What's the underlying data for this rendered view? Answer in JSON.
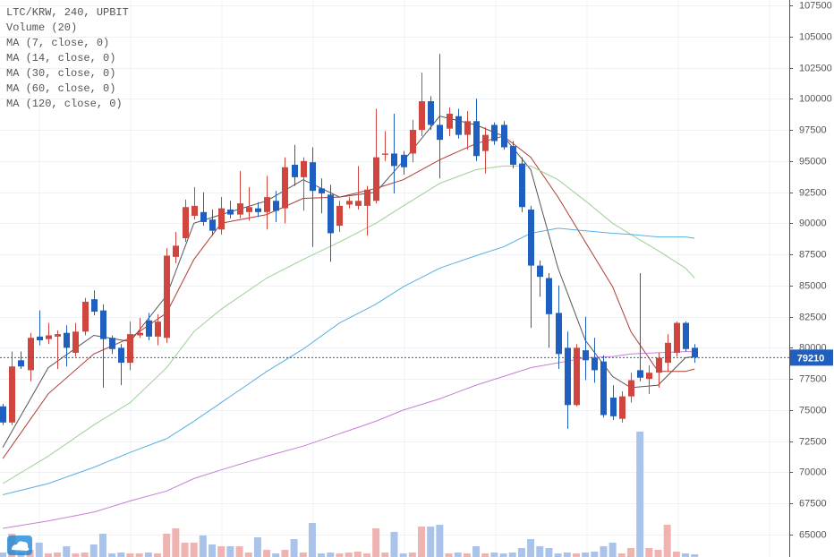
{
  "chart_data": {
    "type": "candlestick",
    "title": "LTC/KRW, 240, UPBIT",
    "volume_label": "Volume (20)",
    "open": [
      75300,
      74000,
      79000,
      78200,
      80900,
      80700,
      80900,
      81200,
      79600,
      81300,
      83900,
      83000,
      80800,
      80000,
      78800,
      81000,
      82200,
      80900,
      80800,
      87300,
      88800,
      90600,
      90900,
      90300,
      89500,
      91100,
      90700,
      90900,
      91200,
      90900,
      91800,
      91200,
      94700,
      93700,
      94900,
      92800,
      92300,
      89800,
      91500,
      91400,
      91400,
      91800,
      95500,
      95600,
      95500,
      95600,
      97500,
      99800,
      97900,
      97600,
      98600,
      97100,
      98200,
      95800,
      97900,
      97900,
      96200,
      94800,
      91100,
      86600,
      85600,
      82800,
      80000,
      75400,
      79800,
      79200,
      78900,
      76000,
      74300,
      76100,
      78200,
      77500,
      78000,
      78800,
      79600,
      82000,
      80000
    ],
    "high": [
      75500,
      79700,
      79700,
      81200,
      83000,
      82000,
      81400,
      81800,
      82000,
      84000,
      84600,
      83500,
      81000,
      80300,
      82100,
      82400,
      82800,
      82700,
      88000,
      89300,
      91900,
      92900,
      92500,
      91100,
      92100,
      91800,
      94200,
      92900,
      91700,
      93800,
      92600,
      95300,
      96300,
      95300,
      96100,
      93600,
      93100,
      91800,
      92100,
      94600,
      93000,
      99200,
      97400,
      98800,
      95800,
      98300,
      102100,
      100200,
      103600,
      99300,
      99200,
      99000,
      100000,
      97700,
      98100,
      98200,
      96600,
      95300,
      91400,
      87000,
      86000,
      85000,
      81300,
      80300,
      82500,
      80800,
      79400,
      77000,
      76500,
      78000,
      86000,
      78600,
      79600,
      81100,
      82100,
      82100,
      80300
    ],
    "low": [
      73800,
      73800,
      78300,
      77300,
      80200,
      80300,
      78300,
      78500,
      79300,
      81000,
      82600,
      76800,
      79500,
      77000,
      78200,
      80800,
      80600,
      80200,
      80400,
      86800,
      88500,
      90300,
      89800,
      89000,
      89100,
      90400,
      90400,
      90200,
      90500,
      89500,
      90100,
      90000,
      93000,
      91000,
      88100,
      90800,
      86900,
      89300,
      91200,
      91100,
      89000,
      91600,
      95000,
      92400,
      93900,
      94900,
      97000,
      97500,
      93600,
      97000,
      96800,
      95900,
      95000,
      94000,
      96300,
      95900,
      94400,
      90900,
      81600,
      84100,
      80000,
      78300,
      73500,
      75300,
      77400,
      77200,
      74400,
      74200,
      74000,
      75600,
      77300,
      76300,
      76800,
      78100,
      79300,
      79700,
      78800
    ],
    "close": [
      74000,
      78500,
      78500,
      80800,
      80600,
      81000,
      81100,
      80000,
      81300,
      83700,
      82900,
      80700,
      79900,
      78800,
      81100,
      81200,
      80900,
      82100,
      87400,
      88200,
      91300,
      91400,
      90100,
      89400,
      91200,
      90700,
      91600,
      91300,
      90900,
      92100,
      91000,
      94500,
      93700,
      95000,
      92600,
      92400,
      89200,
      91400,
      91800,
      91800,
      92700,
      95300,
      95600,
      94600,
      94500,
      97500,
      99800,
      97900,
      96700,
      98800,
      97100,
      98200,
      95400,
      97100,
      96600,
      96100,
      94700,
      91300,
      86600,
      85700,
      82700,
      79500,
      75400,
      80000,
      79000,
      78200,
      74600,
      74500,
      76100,
      77400,
      77600,
      78000,
      79200,
      80400,
      82000,
      79900,
      79210
    ],
    "volume": [
      5,
      26,
      5,
      8,
      16,
      4,
      5,
      12,
      4,
      5,
      14,
      26,
      4,
      5,
      4,
      4,
      5,
      4,
      26,
      32,
      16,
      16,
      24,
      14,
      12,
      12,
      12,
      5,
      22,
      8,
      4,
      8,
      20,
      5,
      38,
      4,
      5,
      4,
      5,
      6,
      4,
      32,
      5,
      28,
      4,
      5,
      34,
      34,
      36,
      4,
      5,
      4,
      12,
      4,
      5,
      4,
      5,
      10,
      20,
      12,
      10,
      4,
      5,
      4,
      5,
      6,
      12,
      16,
      4,
      10,
      140,
      10,
      8,
      36,
      6,
      4,
      3
    ],
    "volume_ylim": [
      0,
      150
    ],
    "up_color": "#d0453d",
    "down_color": "#1f5fbf",
    "up_volume_color": "#efb3b1",
    "down_volume_color": "#a9c3ea",
    "xlim": [
      -0.3,
      86.4
    ],
    "ylim": [
      63200,
      107930
    ],
    "yticks": [
      65000,
      67500,
      70000,
      72500,
      75000,
      77500,
      80000,
      82500,
      85000,
      87500,
      90000,
      92500,
      95000,
      97500,
      100000,
      102500,
      105000,
      107500
    ],
    "grid": true,
    "ma": [
      {
        "name": "MA (7, close, 0)",
        "color": "#555555",
        "x": [
          0,
          5,
          10,
          14,
          18,
          21,
          24,
          29,
          33,
          37,
          41,
          44,
          48,
          52,
          55,
          58,
          61,
          64,
          67,
          69,
          72,
          75,
          76
        ],
        "values": [
          72000,
          78400,
          81000,
          80500,
          84200,
          90000,
          90700,
          91800,
          93500,
          92100,
          92500,
          95000,
          98600,
          97900,
          97000,
          94300,
          86400,
          80600,
          77700,
          76800,
          77000,
          79200,
          79300
        ]
      },
      {
        "name": "MA (14, close, 0)",
        "color": "#b03a32",
        "x": [
          0,
          5,
          10,
          14,
          18,
          21,
          24,
          29,
          33,
          37,
          41,
          44,
          48,
          52,
          55,
          58,
          61,
          64,
          67,
          69,
          72,
          75,
          76
        ],
        "values": [
          71100,
          76300,
          79500,
          80800,
          82800,
          87100,
          90000,
          90700,
          92000,
          92100,
          92800,
          93500,
          95100,
          96400,
          97000,
          95300,
          92100,
          88500,
          84900,
          81300,
          78100,
          78100,
          78300
        ]
      },
      {
        "name": "MA (30, close, 0)",
        "color": "#9ccf96",
        "x": [
          0,
          5,
          10,
          14,
          18,
          21,
          24,
          29,
          33,
          37,
          41,
          44,
          48,
          52,
          55,
          58,
          61,
          64,
          67,
          69,
          72,
          75,
          76
        ],
        "values": [
          69100,
          71300,
          73800,
          75600,
          78400,
          81300,
          83100,
          85600,
          87100,
          88500,
          90000,
          91400,
          93200,
          94300,
          94600,
          94600,
          93500,
          91800,
          90000,
          89100,
          87800,
          86400,
          85600
        ]
      },
      {
        "name": "MA (60, close, 0)",
        "color": "#5aaee3",
        "x": [
          0,
          5,
          10,
          14,
          18,
          21,
          24,
          29,
          33,
          37,
          41,
          44,
          48,
          52,
          55,
          58,
          61,
          64,
          67,
          69,
          72,
          75,
          76
        ],
        "values": [
          68200,
          69100,
          70400,
          71600,
          72700,
          74100,
          75600,
          78100,
          79900,
          82000,
          83500,
          84900,
          86400,
          87400,
          88100,
          89200,
          89600,
          89400,
          89200,
          89100,
          88900,
          88900,
          88800
        ]
      },
      {
        "name": "MA (120, close, 0)",
        "color": "#c77fd6",
        "x": [
          0,
          5,
          10,
          14,
          18,
          21,
          24,
          29,
          33,
          37,
          41,
          44,
          48,
          52,
          55,
          58,
          61,
          64,
          67,
          69,
          72,
          75,
          76
        ],
        "values": [
          65500,
          66100,
          66800,
          67700,
          68500,
          69500,
          70200,
          71300,
          72100,
          73100,
          74100,
          75000,
          75900,
          77000,
          77700,
          78400,
          78800,
          79200,
          79300,
          79500,
          79600,
          79700,
          79700
        ]
      }
    ],
    "last_price": 79210,
    "last_price_color": "#1f5fbf"
  }
}
